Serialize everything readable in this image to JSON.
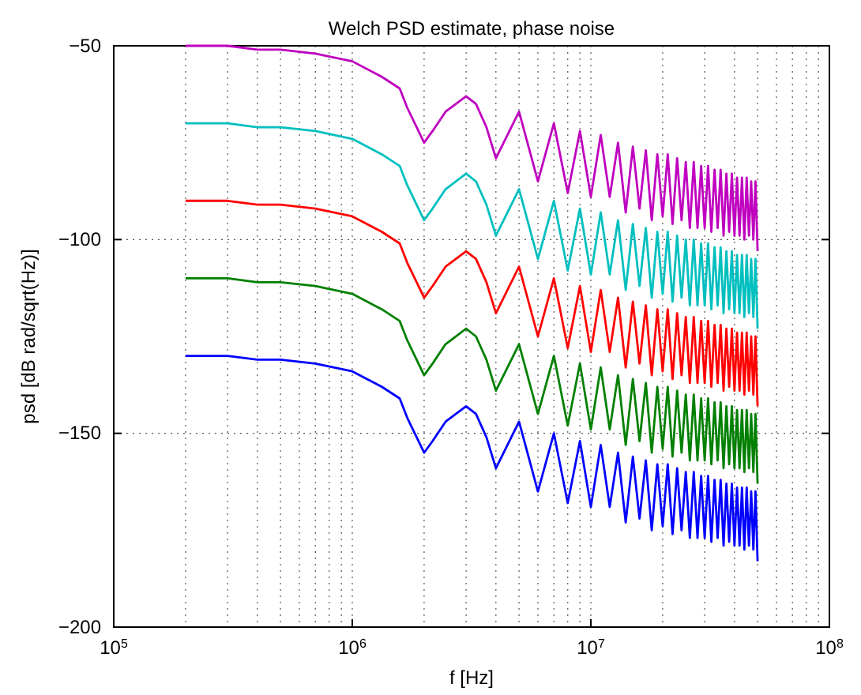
{
  "chart_data": {
    "type": "line",
    "title": "Welch PSD estimate, phase noise",
    "xlabel": "f [Hz]",
    "ylabel": "psd [dB rad/sqrt(Hz)]",
    "log": "x",
    "grid": true,
    "xlim": [
      100000,
      100000000
    ],
    "xticks": [
      {
        "value": 100000,
        "label": "10$^{5}$"
      },
      {
        "value": 1000000,
        "label": "10$^{6}$"
      },
      {
        "value": 10000000,
        "label": "10$^{7}$"
      },
      {
        "value": 100000000,
        "label": "10$^{8}$"
      }
    ],
    "ylim": [
      -200,
      -50
    ],
    "yticks": [
      -200,
      -150,
      -100,
      -50
    ],
    "x": [
      200000,
      300000,
      400000,
      500000,
      700000,
      1000000,
      1330000,
      1580000,
      1700000,
      2000000,
      2170000,
      2460000,
      3000000,
      3300000,
      3650000,
      4000000,
      5000000,
      6000000,
      7000000,
      8000000,
      9000000,
      10000000,
      11000000,
      12000000,
      13000000,
      14000000,
      15000000,
      16000000,
      17000000,
      18000000,
      19000000,
      20000000,
      21000000,
      22000000,
      23000000,
      24000000,
      25000000,
      26000000,
      27000000,
      28000000,
      29000000,
      30000000,
      31000000,
      32000000,
      33000000,
      34000000,
      35000000,
      36000000,
      37000000,
      38000000,
      39000000,
      40000000,
      41000000,
      42000000,
      43000000,
      44000000,
      45000000,
      46000000,
      47000000,
      48000000,
      49000000,
      50000000
    ],
    "series": [
      {
        "color": "#0000ff",
        "values": [
          -130,
          -130,
          -131,
          -131,
          -132,
          -134,
          -138,
          -141,
          -146,
          -155,
          -152,
          -147,
          -143,
          -145,
          -151,
          -159,
          -147,
          -165,
          -150,
          -168,
          -152,
          -169,
          -153,
          -169,
          -155,
          -173,
          -156,
          -172,
          -157,
          -175,
          -158,
          -174,
          -158,
          -176,
          -159,
          -175,
          -160,
          -177,
          -160,
          -177,
          -161,
          -177,
          -161,
          -178,
          -162,
          -177,
          -162,
          -179,
          -163,
          -178,
          -163,
          -179,
          -164,
          -179,
          -164,
          -180,
          -164,
          -179,
          -165,
          -180,
          -165,
          -183
        ]
      },
      {
        "color": "#008000",
        "values": [
          -110,
          -110,
          -111,
          -111,
          -112,
          -114,
          -118,
          -121,
          -126,
          -135,
          -132,
          -127,
          -123,
          -125,
          -131,
          -139,
          -127,
          -145,
          -130,
          -148,
          -132,
          -149,
          -133,
          -149,
          -135,
          -153,
          -136,
          -152,
          -137,
          -155,
          -138,
          -154,
          -138,
          -156,
          -139,
          -155,
          -140,
          -157,
          -140,
          -157,
          -141,
          -157,
          -141,
          -158,
          -142,
          -157,
          -142,
          -159,
          -143,
          -158,
          -143,
          -159,
          -144,
          -159,
          -144,
          -160,
          -144,
          -159,
          -145,
          -160,
          -145,
          -163
        ]
      },
      {
        "color": "#ff0000",
        "values": [
          -90,
          -90,
          -91,
          -91,
          -92,
          -94,
          -98,
          -101,
          -106,
          -115,
          -112,
          -107,
          -103,
          -105,
          -111,
          -119,
          -107,
          -125,
          -110,
          -128,
          -112,
          -129,
          -113,
          -129,
          -115,
          -133,
          -116,
          -132,
          -117,
          -135,
          -118,
          -134,
          -118,
          -136,
          -119,
          -135,
          -120,
          -137,
          -120,
          -137,
          -121,
          -137,
          -121,
          -138,
          -122,
          -137,
          -122,
          -139,
          -123,
          -138,
          -123,
          -139,
          -124,
          -139,
          -124,
          -140,
          -124,
          -139,
          -125,
          -140,
          -125,
          -143
        ]
      },
      {
        "color": "#00bfbf",
        "values": [
          -70,
          -70,
          -71,
          -71,
          -72,
          -74,
          -78,
          -81,
          -86,
          -95,
          -92,
          -87,
          -83,
          -85,
          -91,
          -99,
          -87,
          -105,
          -90,
          -108,
          -92,
          -109,
          -93,
          -109,
          -95,
          -113,
          -96,
          -112,
          -97,
          -115,
          -98,
          -114,
          -98,
          -116,
          -99,
          -115,
          -100,
          -117,
          -100,
          -117,
          -101,
          -117,
          -101,
          -118,
          -102,
          -117,
          -102,
          -119,
          -103,
          -118,
          -103,
          -119,
          -104,
          -119,
          -104,
          -120,
          -104,
          -119,
          -105,
          -120,
          -105,
          -123
        ]
      },
      {
        "color": "#bf00bf",
        "values": [
          -50,
          -50,
          -51,
          -51,
          -52,
          -54,
          -58,
          -61,
          -66,
          -75,
          -72,
          -67,
          -63,
          -65,
          -71,
          -79,
          -67,
          -85,
          -70,
          -88,
          -72,
          -89,
          -73,
          -89,
          -75,
          -93,
          -76,
          -92,
          -77,
          -95,
          -78,
          -94,
          -78,
          -96,
          -79,
          -95,
          -80,
          -97,
          -80,
          -97,
          -81,
          -97,
          -81,
          -98,
          -82,
          -97,
          -82,
          -99,
          -83,
          -98,
          -83,
          -99,
          -84,
          -99,
          -84,
          -100,
          -84,
          -99,
          -85,
          -100,
          -85,
          -103
        ]
      }
    ]
  }
}
